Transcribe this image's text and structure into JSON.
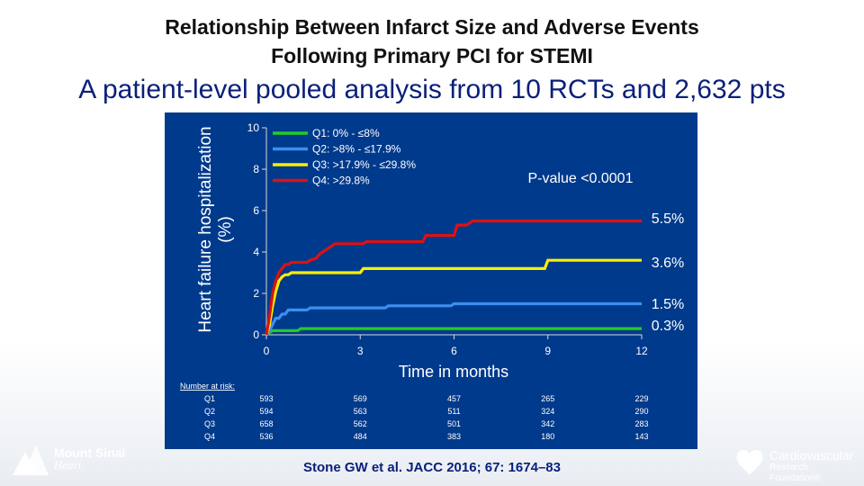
{
  "header": {
    "title_line1": "Relationship Between Infarct Size and Adverse Events",
    "title_line2": "Following Primary PCI for STEMI",
    "subtitle": "A patient-level pooled analysis from 10 RCTs and 2,632 pts"
  },
  "chart_data": {
    "type": "line",
    "title": "",
    "xlabel": "Time in months",
    "ylabel": "Heart failure hospitalization (%)",
    "xlim": [
      0,
      12
    ],
    "ylim": [
      0,
      10
    ],
    "x_ticks": [
      "0",
      "3",
      "6",
      "9",
      "12"
    ],
    "y_ticks": [
      "0",
      "2",
      "4",
      "6",
      "8",
      "10"
    ],
    "legend_position": "top-left",
    "annotation": "P-value <0.0001",
    "series": [
      {
        "name": "Q1: 0% - ≤8%",
        "color": "#22cc22",
        "end_label": "0.3%",
        "points": [
          [
            0,
            0
          ],
          [
            0.1,
            0.1
          ],
          [
            0.2,
            0.2
          ],
          [
            1.0,
            0.2
          ],
          [
            1.1,
            0.3
          ],
          [
            12,
            0.3
          ]
        ]
      },
      {
        "name": "Q2: >8% - ≤17.9%",
        "color": "#3d8ff0",
        "end_label": "1.5%",
        "points": [
          [
            0,
            0
          ],
          [
            0.1,
            0.2
          ],
          [
            0.2,
            0.5
          ],
          [
            0.3,
            0.8
          ],
          [
            0.4,
            0.8
          ],
          [
            0.5,
            1.0
          ],
          [
            0.6,
            1.0
          ],
          [
            0.7,
            1.2
          ],
          [
            1.3,
            1.2
          ],
          [
            1.4,
            1.3
          ],
          [
            3.8,
            1.3
          ],
          [
            3.9,
            1.4
          ],
          [
            5.9,
            1.4
          ],
          [
            6.0,
            1.5
          ],
          [
            12,
            1.5
          ]
        ]
      },
      {
        "name": "Q3: >17.9% - ≤29.8%",
        "color": "#ffee00",
        "end_label": "3.6%",
        "points": [
          [
            0,
            0
          ],
          [
            0.1,
            0.5
          ],
          [
            0.2,
            1.4
          ],
          [
            0.3,
            2.1
          ],
          [
            0.4,
            2.6
          ],
          [
            0.5,
            2.8
          ],
          [
            0.6,
            2.9
          ],
          [
            0.7,
            2.9
          ],
          [
            0.8,
            3.0
          ],
          [
            3.0,
            3.0
          ],
          [
            3.1,
            3.2
          ],
          [
            8.9,
            3.2
          ],
          [
            9.0,
            3.6
          ],
          [
            12,
            3.6
          ]
        ]
      },
      {
        "name": "Q4: >29.8%",
        "color": "#dd1111",
        "end_label": "5.5%",
        "points": [
          [
            0,
            0
          ],
          [
            0.1,
            0.9
          ],
          [
            0.2,
            2.0
          ],
          [
            0.3,
            2.6
          ],
          [
            0.4,
            3.0
          ],
          [
            0.5,
            3.2
          ],
          [
            0.6,
            3.4
          ],
          [
            0.7,
            3.4
          ],
          [
            0.8,
            3.5
          ],
          [
            1.3,
            3.5
          ],
          [
            1.4,
            3.6
          ],
          [
            1.6,
            3.7
          ],
          [
            1.7,
            3.9
          ],
          [
            1.8,
            4.0
          ],
          [
            1.9,
            4.1
          ],
          [
            2.0,
            4.2
          ],
          [
            2.1,
            4.3
          ],
          [
            2.2,
            4.4
          ],
          [
            3.1,
            4.4
          ],
          [
            3.2,
            4.5
          ],
          [
            5.0,
            4.5
          ],
          [
            5.1,
            4.8
          ],
          [
            6.0,
            4.8
          ],
          [
            6.1,
            5.3
          ],
          [
            6.4,
            5.3
          ],
          [
            6.5,
            5.4
          ],
          [
            6.6,
            5.5
          ],
          [
            12,
            5.5
          ]
        ]
      }
    ],
    "risk_table": {
      "label": "Number at risk:",
      "time_points": [
        0,
        3,
        6,
        9,
        12
      ],
      "rows": [
        {
          "group": "Q1",
          "counts": [
            "593",
            "569",
            "457",
            "265",
            "229"
          ]
        },
        {
          "group": "Q2",
          "counts": [
            "594",
            "563",
            "511",
            "324",
            "290"
          ]
        },
        {
          "group": "Q3",
          "counts": [
            "658",
            "562",
            "501",
            "342",
            "283"
          ]
        },
        {
          "group": "Q4",
          "counts": [
            "536",
            "484",
            "383",
            "180",
            "143"
          ]
        }
      ]
    }
  },
  "footer": {
    "citation": "Stone GW et al. JACC 2016; 67: 1674–83",
    "logo_left_line1": "Mount Sinai",
    "logo_left_line2": "Heart",
    "logo_right_line1": "Cardiovascular",
    "logo_right_line2": "Research Foundation®"
  }
}
